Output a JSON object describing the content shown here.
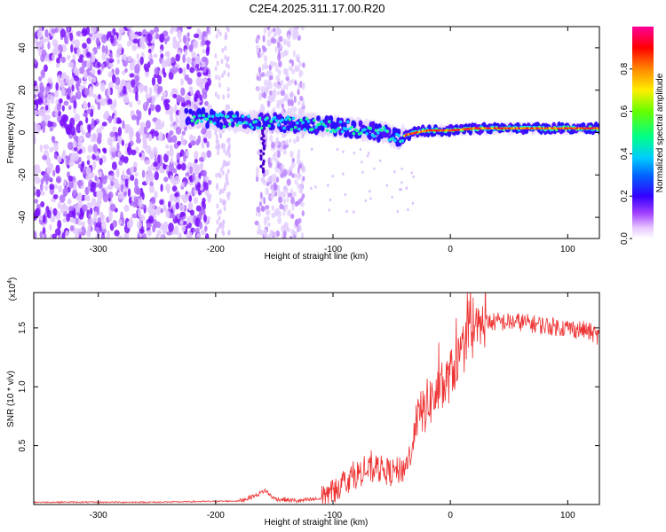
{
  "title": "C2E4.2025.311.17.00.R20",
  "chart_data": [
    {
      "type": "heatmap",
      "name": "spectrogram",
      "xlabel": "Height of straight line (km)",
      "ylabel": "Frequency (Hz)",
      "xlim": [
        -355,
        127
      ],
      "ylim": [
        -50,
        50
      ],
      "xticks": [
        -300,
        -200,
        -100,
        0,
        100
      ],
      "xtick_labels": [
        "-300",
        "-200",
        "-100",
        "0",
        "100"
      ],
      "yticks": [
        -40,
        -20,
        0,
        20,
        40
      ],
      "ytick_labels": [
        "-40",
        "-20",
        "0",
        "20",
        "40"
      ],
      "colorbar": {
        "label": "Normalized spectral amplitude",
        "range": [
          0,
          1
        ],
        "ticks": [
          0.0,
          0.2,
          0.4,
          0.6,
          0.8
        ],
        "tick_labels": [
          "0.0",
          "0.2",
          "0.4",
          "0.6",
          "0.8"
        ],
        "colors": [
          "#ffffff",
          "#cc88ff",
          "#7a00ff",
          "#1010ff",
          "#00ccff",
          "#00ff66",
          "#88ff00",
          "#ffee00",
          "#ff8800",
          "#ff0000",
          "#ff00aa"
        ]
      },
      "ridge": {
        "description_points_x": [
          -225,
          -200,
          -175,
          -150,
          -125,
          -100,
          -85,
          -70,
          -55,
          -45,
          -38,
          -30,
          -20,
          -10,
          0,
          20,
          50,
          80,
          110,
          127
        ],
        "description_points_y": [
          8,
          6,
          5,
          5,
          4,
          3,
          2,
          1,
          0,
          -3,
          -1,
          0,
          1,
          1,
          1,
          2,
          2,
          2,
          2,
          2
        ]
      }
    },
    {
      "type": "line",
      "name": "snr",
      "xlabel": "Height of straight line (km)",
      "ylabel": "SNR (10 * v/v)",
      "multiplier_label": "(x10",
      "multiplier_exp": "4",
      "multiplier_close": ")",
      "xlim": [
        -355,
        127
      ],
      "ylim": [
        0,
        1.8
      ],
      "xticks": [
        -300,
        -200,
        -100,
        0,
        100
      ],
      "xtick_labels": [
        "-300",
        "-200",
        "-100",
        "0",
        "100"
      ],
      "yticks": [
        0.5,
        1.0,
        1.5
      ],
      "ytick_labels": [
        "0.5",
        "1.0",
        "1.5"
      ],
      "color": "#ee3333",
      "envelope_x": [
        -355,
        -250,
        -180,
        -165,
        -158,
        -150,
        -130,
        -110,
        -100,
        -90,
        -75,
        -60,
        -50,
        -40,
        -33,
        -28,
        -20,
        -10,
        -5,
        0,
        10,
        20,
        30,
        40,
        60,
        80,
        100,
        115,
        127
      ],
      "envelope_y": [
        0.02,
        0.02,
        0.03,
        0.08,
        0.12,
        0.05,
        0.03,
        0.05,
        0.12,
        0.2,
        0.28,
        0.3,
        0.27,
        0.3,
        0.45,
        0.7,
        0.85,
        0.95,
        1.0,
        1.1,
        1.3,
        1.45,
        1.55,
        1.55,
        1.55,
        1.52,
        1.5,
        1.48,
        1.43
      ]
    }
  ]
}
